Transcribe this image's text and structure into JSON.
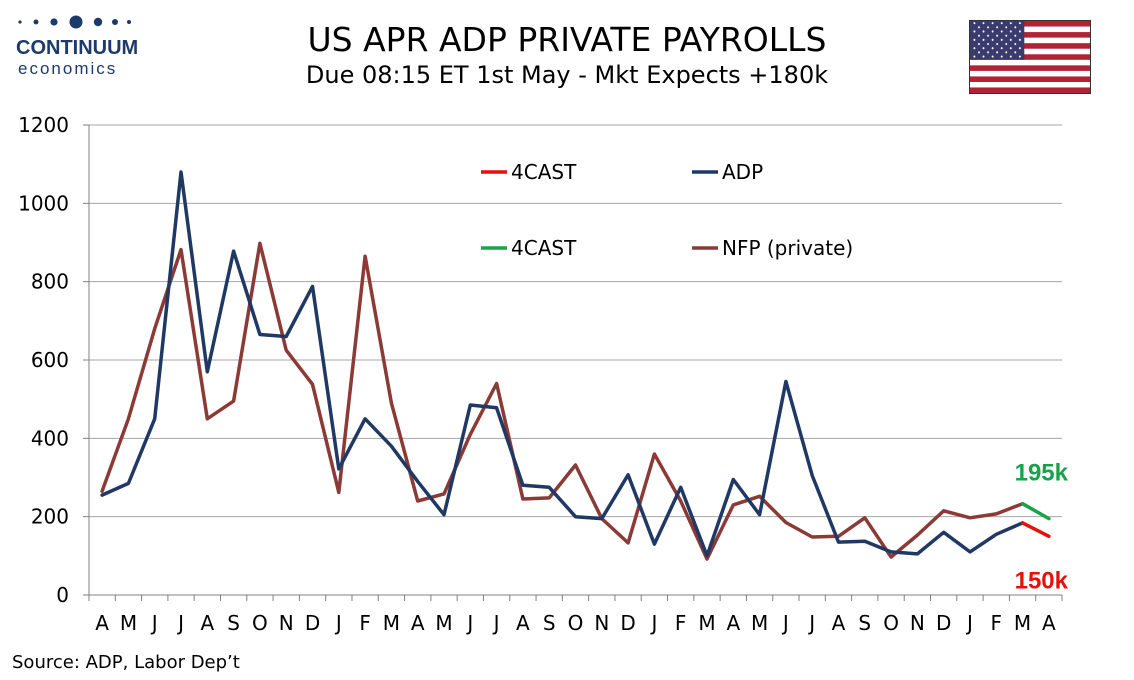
{
  "logo": {
    "name": "CONTINUUM",
    "tagline": "economics"
  },
  "header": {
    "title": "US APR ADP PRIVATE PAYROLLS",
    "subtitle": "Due 08:15 ET 1st May - Mkt Expects +180k"
  },
  "flag": {
    "icon": "us-flag-icon"
  },
  "source": "Source: ADP, Labor Dep’t",
  "colors": {
    "adp": "#1f3864",
    "nfp": "#8b3a35",
    "forecast_adp": "#e3120b",
    "forecast_nfp": "#1aa24a",
    "grid": "#a6a6a6",
    "logo": "#1c3a6b"
  },
  "chart_data": {
    "type": "line",
    "categories": [
      "A",
      "M",
      "J",
      "J",
      "A",
      "S",
      "O",
      "N",
      "D",
      "J",
      "F",
      "M",
      "A",
      "M",
      "J",
      "J",
      "A",
      "S",
      "O",
      "N",
      "D",
      "J",
      "F",
      "M",
      "A",
      "M",
      "J",
      "J",
      "A",
      "S",
      "O",
      "N",
      "D",
      "J",
      "F",
      "M",
      "A"
    ],
    "ylim": [
      0,
      1200
    ],
    "yticks": [
      0,
      200,
      400,
      600,
      800,
      1000,
      1200
    ],
    "grid": true,
    "legend_placement": "top-center",
    "series": [
      {
        "name": "ADP",
        "color_key": "adp",
        "values": [
          255,
          285,
          450,
          1080,
          570,
          878,
          665,
          660,
          788,
          322,
          450,
          380,
          290,
          205,
          485,
          478,
          280,
          275,
          200,
          195,
          307,
          130,
          275,
          100,
          295,
          205,
          545,
          305,
          135,
          137,
          110,
          105,
          160,
          110,
          155,
          184,
          null
        ]
      },
      {
        "name": "NFP (private)",
        "color_key": "nfp",
        "values": [
          265,
          450,
          680,
          882,
          450,
          495,
          898,
          625,
          538,
          262,
          865,
          490,
          240,
          258,
          410,
          540,
          245,
          248,
          332,
          195,
          133,
          360,
          240,
          92,
          230,
          252,
          185,
          148,
          150,
          197,
          97,
          153,
          215,
          197,
          207,
          233,
          null
        ]
      },
      {
        "name": "4CAST",
        "color_key": "forecast_adp",
        "values": [
          null,
          null,
          null,
          null,
          null,
          null,
          null,
          null,
          null,
          null,
          null,
          null,
          null,
          null,
          null,
          null,
          null,
          null,
          null,
          null,
          null,
          null,
          null,
          null,
          null,
          null,
          null,
          null,
          null,
          null,
          null,
          null,
          null,
          null,
          null,
          184,
          150
        ]
      },
      {
        "name": "4CAST",
        "color_key": "forecast_nfp",
        "values": [
          null,
          null,
          null,
          null,
          null,
          null,
          null,
          null,
          null,
          null,
          null,
          null,
          null,
          null,
          null,
          null,
          null,
          null,
          null,
          null,
          null,
          null,
          null,
          null,
          null,
          null,
          null,
          null,
          null,
          null,
          null,
          null,
          null,
          null,
          null,
          233,
          195
        ]
      }
    ],
    "legend": [
      {
        "label": "4CAST",
        "color_key": "forecast_adp"
      },
      {
        "label": "ADP",
        "color_key": "adp"
      },
      {
        "label": "4CAST",
        "color_key": "forecast_nfp"
      },
      {
        "label": "NFP (private)",
        "color_key": "nfp"
      }
    ],
    "annotations": [
      {
        "text": "195k",
        "color_key": "forecast_nfp",
        "category_index": 36,
        "value": 195
      },
      {
        "text": "150k",
        "color_key": "forecast_adp",
        "category_index": 36,
        "value": 150
      }
    ]
  }
}
